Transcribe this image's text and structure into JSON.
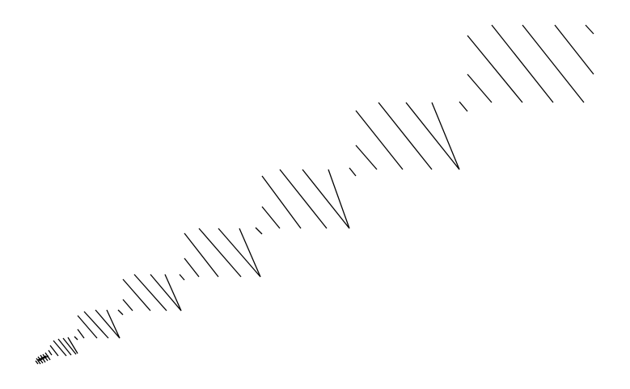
{
  "canvas": {
    "background": "#ffffff"
  },
  "drawing": {
    "description_type": "diagonal-hatch-line-pattern",
    "stroke_color": "#000000"
  }
}
